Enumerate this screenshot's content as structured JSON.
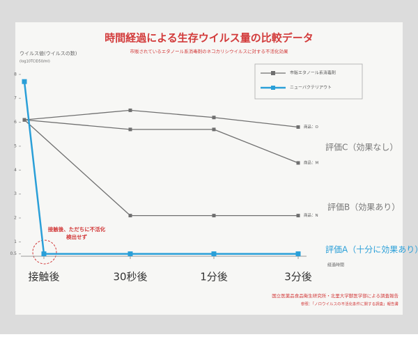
{
  "chart_data": {
    "type": "line",
    "title": "時間経過による生存ウイルス量の比較データ",
    "subtitle": "市販されているエタノール系消毒剤のネコカリシウイルスに対する不活化効果",
    "y_label": "ウイルス値(ウイルスの数)",
    "y_unit": "(log10TCID50/ml)",
    "x_label": "経過時間",
    "categories": [
      null,
      "接触後",
      "30秒後",
      "1分後",
      "3分後"
    ],
    "legend": [
      {
        "name": "市販エタノール系消毒剤",
        "color": "#6f6f6f"
      },
      {
        "name": "ニューバクテリアウト",
        "color": "#2a9fd8"
      }
    ],
    "series": [
      {
        "label": "商品：O",
        "color": "#6f6f6f",
        "values": [
          6.1,
          null,
          6.5,
          6.2,
          5.8
        ]
      },
      {
        "label": "商品：M",
        "color": "#6f6f6f",
        "values": [
          6.1,
          null,
          5.7,
          5.7,
          4.3
        ]
      },
      {
        "label": "商品：N",
        "color": "#6f6f6f",
        "values": [
          6.1,
          null,
          2.1,
          2.1,
          2.1
        ]
      },
      {
        "color": "#2a9fd8",
        "values": [
          7.7,
          0.5,
          0.5,
          0.5,
          0.5
        ]
      }
    ],
    "ylim": [
      0.4,
      8.2
    ],
    "yticks": [
      0.5,
      1,
      2,
      3,
      4,
      5,
      6,
      7,
      8
    ],
    "annotations": {
      "ratings": [
        "評価C（効果なし）",
        "評価B（効果あり）",
        "評価A（十分に効果あり）"
      ],
      "note": [
        "接触後、ただちに不活化",
        "検出せず"
      ]
    },
    "footer": [
      "国立医薬品食品衛生研究所・北里大学獣医学部による調査報告",
      "参照：「ノロウイルスの不活化条件に関する調査」報告書"
    ]
  }
}
